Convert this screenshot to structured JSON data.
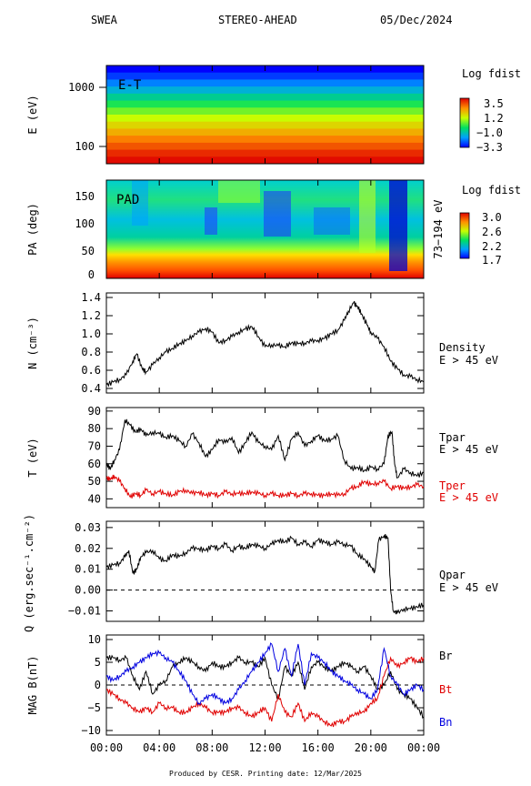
{
  "header": {
    "instrument": "SWEA",
    "spacecraft": "STEREO-AHEAD",
    "date": "05/Dec/2024"
  },
  "footer": "Produced by CESR.   Printing date: 12/Mar/2025",
  "colors": {
    "black": "#000000",
    "red": "#e00000",
    "blue": "#0000e0",
    "grid_dash": "#000000"
  },
  "x_ticks": [
    "00:00",
    "04:00",
    "08:00",
    "12:00",
    "16:00",
    "20:00",
    "00:00"
  ],
  "chart_data": [
    {
      "id": "energy_time",
      "type": "heatmap",
      "panel_label": "E-T",
      "ylabel": "E (eV)",
      "yscale": "log",
      "y_ticks": [
        "1000",
        "100"
      ],
      "colorbar": {
        "title": "Log fdist",
        "ticks": [
          "3.5",
          "1.2",
          "−1.0",
          "−3.3"
        ],
        "range": [
          -3.3,
          3.5
        ]
      },
      "energy_bands_log_fdist": [
        -3.3,
        -2.8,
        -2.2,
        -1.6,
        -1.0,
        -0.4,
        0.2,
        0.8,
        1.3,
        1.8,
        2.3,
        2.7,
        3.1,
        3.4
      ]
    },
    {
      "id": "pad",
      "type": "heatmap",
      "panel_label": "PAD",
      "ylabel": "PA (deg)",
      "y_ticks": [
        "150",
        "100",
        "50",
        "0"
      ],
      "ylim": [
        0,
        180
      ],
      "energy_range_label": "73−194 eV",
      "colorbar": {
        "title": "Log fdist",
        "ticks": [
          "3.0",
          "2.6",
          "2.2",
          "1.7"
        ],
        "range": [
          1.7,
          3.0
        ]
      }
    },
    {
      "id": "density",
      "type": "line",
      "ylabel": "N (cm⁻³)",
      "y_ticks": [
        "1.4",
        "1.2",
        "1.0",
        "0.8",
        "0.6",
        "0.4"
      ],
      "ylim": [
        0.35,
        1.45
      ],
      "series": [
        {
          "name": "Density",
          "sublabel": "E > 45 eV",
          "color": "#000000",
          "x_hours": [
            0,
            0.5,
            1.0,
            1.5,
            2.0,
            2.3,
            2.7,
            3.0,
            3.5,
            4.0,
            4.5,
            5.0,
            5.5,
            6.0,
            6.5,
            7.0,
            7.5,
            8.0,
            8.5,
            9.0,
            9.5,
            10.0,
            10.5,
            11.0,
            11.5,
            12.0,
            12.5,
            13.0,
            13.5,
            14.0,
            14.5,
            15.0,
            15.5,
            16.0,
            16.5,
            17.0,
            17.5,
            18.0,
            18.3,
            18.7,
            19.0,
            19.3,
            19.7,
            20.0,
            20.5,
            21.0,
            21.5,
            22.0,
            22.5,
            23.0,
            23.5,
            24.0
          ],
          "values": [
            0.44,
            0.47,
            0.5,
            0.55,
            0.7,
            0.78,
            0.62,
            0.58,
            0.66,
            0.74,
            0.8,
            0.84,
            0.89,
            0.92,
            0.98,
            1.02,
            1.06,
            1.02,
            0.9,
            0.93,
            0.97,
            1.02,
            1.05,
            1.08,
            0.97,
            0.86,
            0.88,
            0.87,
            0.86,
            0.9,
            0.89,
            0.9,
            0.92,
            0.93,
            0.95,
            1.0,
            1.04,
            1.15,
            1.25,
            1.34,
            1.3,
            1.22,
            1.1,
            1.02,
            0.95,
            0.86,
            0.7,
            0.62,
            0.55,
            0.53,
            0.5,
            0.47
          ]
        }
      ]
    },
    {
      "id": "temperature",
      "type": "line",
      "ylabel": "T (eV)",
      "y_ticks": [
        "90",
        "80",
        "70",
        "60",
        "50",
        "40"
      ],
      "ylim": [
        35,
        92
      ],
      "series": [
        {
          "name": "Tpar",
          "sublabel": "E > 45 eV",
          "color": "#000000",
          "x_hours": [
            0,
            0.3,
            0.6,
            1.0,
            1.4,
            1.8,
            2.2,
            2.6,
            3.0,
            3.5,
            4.0,
            4.5,
            5.0,
            5.5,
            6.0,
            6.5,
            7.0,
            7.5,
            8.0,
            8.5,
            9.0,
            9.5,
            10.0,
            10.5,
            11.0,
            11.5,
            12.0,
            12.5,
            13.0,
            13.5,
            14.0,
            14.5,
            15.0,
            15.5,
            16.0,
            16.5,
            17.0,
            17.5,
            18.0,
            18.5,
            19.0,
            19.5,
            20.0,
            20.5,
            21.0,
            21.3,
            21.6,
            21.8,
            22.0,
            22.5,
            23.0,
            23.5,
            24.0
          ],
          "values": [
            60,
            57,
            62,
            68,
            85,
            82,
            78,
            80,
            76,
            78,
            77,
            75,
            76,
            73,
            70,
            77,
            72,
            64,
            68,
            74,
            72,
            75,
            66,
            72,
            78,
            72,
            70,
            68,
            76,
            62,
            74,
            78,
            70,
            73,
            76,
            73,
            74,
            76,
            62,
            57,
            58,
            56,
            58,
            57,
            60,
            76,
            78,
            60,
            52,
            57,
            55,
            53,
            55
          ]
        },
        {
          "name": "Tper",
          "sublabel": "E > 45 eV",
          "color": "#e00000",
          "x_hours": [
            0,
            0.3,
            0.6,
            1.0,
            1.4,
            1.8,
            2.2,
            2.6,
            3.0,
            3.5,
            4.0,
            4.5,
            5.0,
            5.5,
            6.0,
            6.5,
            7.0,
            7.5,
            8.0,
            8.5,
            9.0,
            9.5,
            10.0,
            10.5,
            11.0,
            11.5,
            12.0,
            12.5,
            13.0,
            13.5,
            14.0,
            14.5,
            15.0,
            15.5,
            16.0,
            16.5,
            17.0,
            17.5,
            18.0,
            18.5,
            19.0,
            19.5,
            20.0,
            20.5,
            21.0,
            21.5,
            22.0,
            22.5,
            23.0,
            23.5,
            24.0
          ],
          "values": [
            52,
            51,
            53,
            50,
            46,
            41,
            43,
            42,
            45,
            43,
            44,
            43,
            42,
            44,
            45,
            43,
            44,
            42,
            43,
            42,
            44,
            43,
            43,
            43,
            44,
            43,
            42,
            43,
            42,
            42,
            43,
            42,
            43,
            43,
            42,
            42,
            43,
            42,
            43,
            46,
            47,
            50,
            48,
            49,
            50,
            46,
            47,
            46,
            47,
            48,
            47
          ]
        }
      ]
    },
    {
      "id": "heat_flux",
      "type": "line",
      "ylabel": "Q (erg.sec⁻¹.cm⁻²)",
      "y_ticks": [
        "0.03",
        "0.02",
        "0.01",
        "0.00",
        "−0.01"
      ],
      "ylim": [
        -0.015,
        0.033
      ],
      "zero_line": true,
      "series": [
        {
          "name": "Qpar",
          "sublabel": "E > 45 eV",
          "color": "#000000",
          "x_hours": [
            0,
            0.5,
            1.0,
            1.4,
            1.7,
            2.0,
            2.3,
            2.6,
            3.0,
            3.5,
            4.0,
            4.5,
            5.0,
            5.5,
            6.0,
            6.5,
            7.0,
            7.5,
            8.0,
            8.5,
            9.0,
            9.5,
            10.0,
            10.5,
            11.0,
            11.5,
            12.0,
            12.5,
            13.0,
            13.5,
            14.0,
            14.5,
            15.0,
            15.5,
            16.0,
            16.5,
            17.0,
            17.5,
            18.0,
            18.5,
            19.0,
            19.5,
            20.0,
            20.3,
            20.6,
            21.0,
            21.3,
            21.5,
            21.7,
            22.0,
            22.5,
            23.0,
            23.5,
            24.0
          ],
          "values": [
            0.011,
            0.012,
            0.013,
            0.016,
            0.019,
            0.008,
            0.01,
            0.016,
            0.018,
            0.019,
            0.015,
            0.014,
            0.017,
            0.016,
            0.018,
            0.02,
            0.02,
            0.019,
            0.021,
            0.02,
            0.022,
            0.019,
            0.021,
            0.02,
            0.022,
            0.021,
            0.02,
            0.022,
            0.024,
            0.023,
            0.025,
            0.022,
            0.023,
            0.021,
            0.024,
            0.023,
            0.022,
            0.023,
            0.022,
            0.021,
            0.017,
            0.015,
            0.011,
            0.009,
            0.024,
            0.026,
            0.025,
            0.0,
            -0.01,
            -0.011,
            -0.009,
            -0.009,
            -0.008,
            -0.007
          ]
        }
      ]
    },
    {
      "id": "mag",
      "type": "line",
      "ylabel": "MAG B(nT)",
      "y_ticks": [
        "10",
        "5",
        "0",
        "−5",
        "−10"
      ],
      "ylim": [
        -11,
        11
      ],
      "zero_line": true,
      "series": [
        {
          "name": "Br",
          "color": "#000000",
          "x_hours": [
            0,
            0.5,
            1.0,
            1.5,
            2.0,
            2.5,
            3.0,
            3.5,
            4.0,
            4.5,
            5.0,
            5.5,
            6.0,
            6.5,
            7.0,
            7.5,
            8.0,
            8.5,
            9.0,
            9.5,
            10.0,
            10.5,
            11.0,
            11.5,
            12.0,
            12.5,
            13.0,
            13.5,
            14.0,
            14.5,
            15.0,
            15.5,
            16.0,
            16.5,
            17.0,
            17.5,
            18.0,
            18.5,
            19.0,
            19.5,
            20.0,
            20.5,
            21.0,
            21.5,
            22.0,
            22.5,
            23.0,
            23.5,
            24.0
          ],
          "values": [
            6,
            6,
            5.5,
            6,
            2,
            -1,
            3,
            -2,
            0,
            1,
            4,
            5,
            6,
            5,
            4,
            3,
            5,
            4,
            4,
            5,
            6,
            5,
            5,
            4,
            6,
            0,
            -3,
            4,
            2,
            5,
            -1,
            4,
            5,
            4,
            3,
            4,
            5,
            4,
            3,
            4,
            2,
            -1,
            0,
            3,
            -1,
            -2,
            -3,
            -5,
            -7
          ]
        },
        {
          "name": "Bt",
          "color": "#e00000",
          "x_hours": [
            0,
            0.5,
            1.0,
            1.5,
            2.0,
            2.5,
            3.0,
            3.5,
            4.0,
            4.5,
            5.0,
            5.5,
            6.0,
            6.5,
            7.0,
            7.5,
            8.0,
            8.5,
            9.0,
            9.5,
            10.0,
            10.5,
            11.0,
            11.5,
            12.0,
            12.5,
            13.0,
            13.5,
            14.0,
            14.5,
            15.0,
            15.5,
            16.0,
            16.5,
            17.0,
            17.5,
            18.0,
            18.5,
            19.0,
            19.5,
            20.0,
            20.5,
            21.0,
            21.5,
            22.0,
            22.5,
            23.0,
            23.5,
            24.0
          ],
          "values": [
            -1,
            -2,
            -3,
            -4,
            -5,
            -6,
            -5,
            -6,
            -4,
            -5,
            -5,
            -6,
            -6,
            -5,
            -4,
            -5,
            -6,
            -6,
            -6,
            -5,
            -5,
            -6,
            -7,
            -6,
            -5,
            -8,
            -2,
            -6,
            -7,
            -4,
            -8,
            -6,
            -7,
            -8,
            -9,
            -8,
            -8,
            -7,
            -6,
            -6,
            -4,
            -3,
            2,
            6,
            4,
            5,
            6,
            5,
            6
          ]
        },
        {
          "name": "Bn",
          "color": "#0000e0",
          "x_hours": [
            0,
            0.5,
            1.0,
            1.5,
            2.0,
            2.5,
            3.0,
            3.5,
            4.0,
            4.5,
            5.0,
            5.5,
            6.0,
            6.5,
            7.0,
            7.5,
            8.0,
            8.5,
            9.0,
            9.5,
            10.0,
            10.5,
            11.0,
            11.5,
            12.0,
            12.5,
            13.0,
            13.5,
            14.0,
            14.5,
            15.0,
            15.5,
            16.0,
            16.5,
            17.0,
            17.5,
            18.0,
            18.5,
            19.0,
            19.5,
            20.0,
            20.5,
            21.0,
            21.5,
            22.0,
            22.5,
            23.0,
            23.5,
            24.0
          ],
          "values": [
            2,
            1,
            2,
            3,
            4,
            5,
            6,
            7,
            7,
            6,
            5,
            3,
            1,
            -2,
            -4,
            -3,
            -2,
            -3,
            -4,
            -3,
            -1,
            1,
            3,
            5,
            7,
            9,
            3,
            8,
            2,
            9,
            0,
            7,
            6,
            5,
            3,
            2,
            1,
            0,
            -1,
            -2,
            -3,
            -1,
            8,
            2,
            0,
            -2,
            -1,
            0,
            -1
          ]
        }
      ]
    }
  ]
}
